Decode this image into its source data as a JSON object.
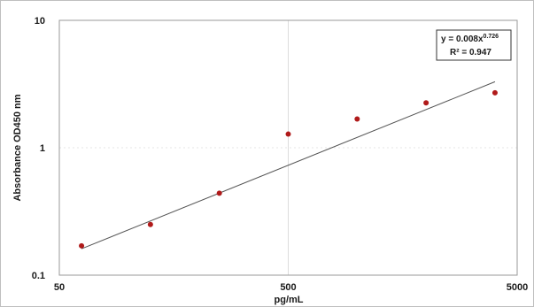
{
  "chart_data": {
    "type": "scatter",
    "title": "",
    "xlabel": "pg/mL",
    "ylabel": "Absorbance OD450 nm",
    "x_scale": "log",
    "y_scale": "log",
    "xlim": [
      50,
      5000
    ],
    "ylim": [
      0.1,
      10
    ],
    "x_ticks": [
      {
        "value": 50,
        "label": "50"
      },
      {
        "value": 500,
        "label": "500"
      },
      {
        "value": 5000,
        "label": "5000"
      }
    ],
    "y_ticks": [
      {
        "value": 0.1,
        "label": "0.1"
      },
      {
        "value": 1,
        "label": "1"
      },
      {
        "value": 10,
        "label": "10"
      }
    ],
    "grid": true,
    "points": [
      {
        "x": 62.5,
        "y": 0.17
      },
      {
        "x": 125,
        "y": 0.25
      },
      {
        "x": 250,
        "y": 0.44
      },
      {
        "x": 500,
        "y": 1.28
      },
      {
        "x": 1000,
        "y": 1.68
      },
      {
        "x": 2000,
        "y": 2.25
      },
      {
        "x": 4000,
        "y": 2.7
      }
    ],
    "point_color": "#b01a1a",
    "trendline": {
      "type": "power",
      "coefficient": 0.008,
      "exponent": 0.726,
      "x_range": [
        62.5,
        4000
      ],
      "color": "#555555",
      "equation_prefix": "y = 0.008x",
      "equation_exponent": "0.726",
      "r2_label": "R² = 0.947"
    }
  }
}
